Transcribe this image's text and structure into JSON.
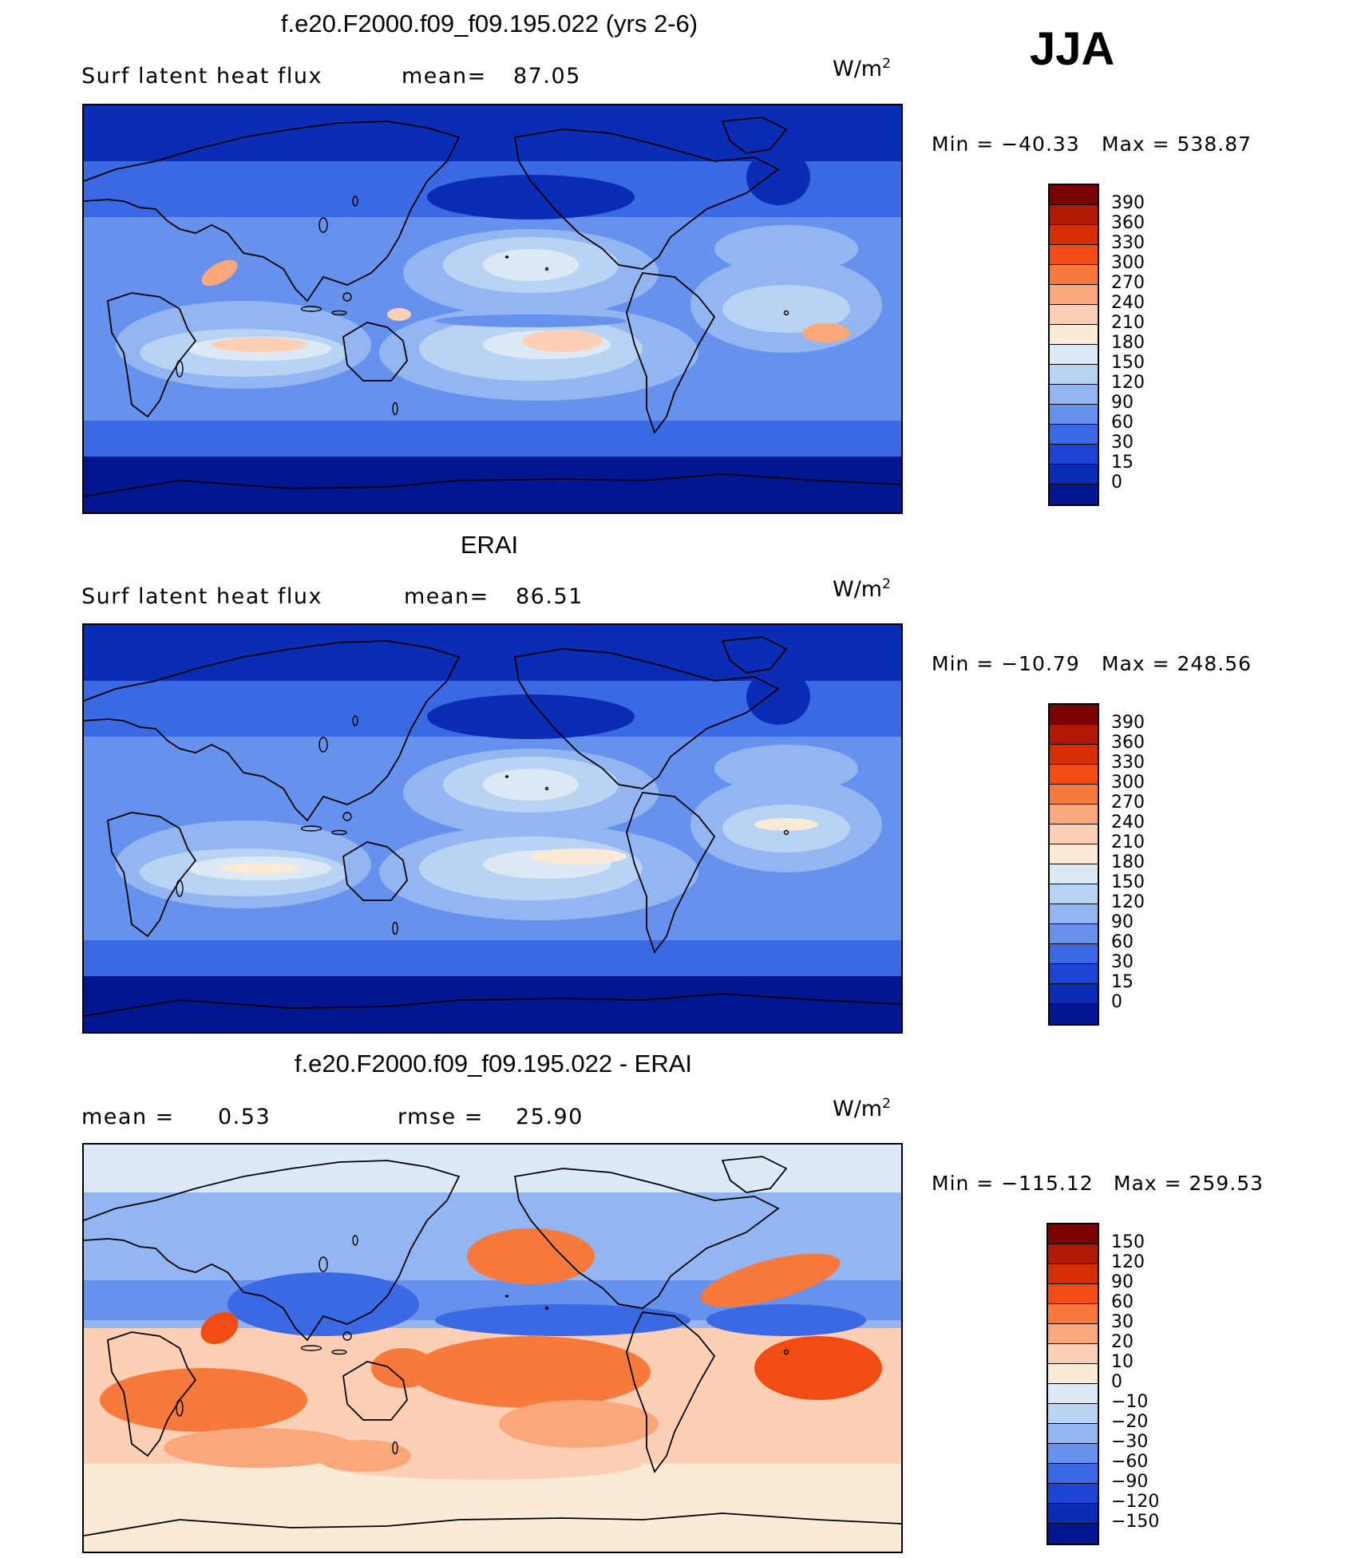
{
  "season": "JJA",
  "units_base": "W/m",
  "units_exp": "2",
  "panels": [
    {
      "title": "f.e20.F2000.f09_f09.195.022 (yrs 2-6)",
      "left_label": "Surf  latent  heat  flux",
      "stat_label": "mean=",
      "stat_value": "87.05",
      "min_label": "Min  =  −40.33",
      "max_label": "Max  =  538.87",
      "map_type": "field"
    },
    {
      "title": "ERAI",
      "left_label": "Surf  latent  heat  flux",
      "stat_label": "mean=",
      "stat_value": "86.51",
      "min_label": "Min  =  −10.79",
      "max_label": "Max  =  248.56",
      "map_type": "field"
    },
    {
      "title": "f.e20.F2000.f09_f09.195.022 - ERAI",
      "left_label": "mean  =",
      "left_value": "0.53",
      "stat_label": "rmse  =",
      "stat_value": "25.90",
      "min_label": "Min  =  −115.12",
      "max_label": "Max  =  259.53",
      "map_type": "diff"
    }
  ],
  "colorbars": {
    "field": {
      "colors": [
        "#7a0404",
        "#b01a04",
        "#d52e05",
        "#f24b14",
        "#f7793c",
        "#fba77c",
        "#fdd0b6",
        "#fbebd6",
        "#dde9f6",
        "#b9d3f4",
        "#93b6f2",
        "#6691ec",
        "#3b69e3",
        "#1c45d3",
        "#0b2cb5",
        "#021691"
      ],
      "labels": [
        "390",
        "360",
        "330",
        "300",
        "270",
        "240",
        "210",
        "180",
        "150",
        "120",
        "90",
        "60",
        "30",
        "15",
        "0"
      ]
    },
    "diff": {
      "colors": [
        "#7a0404",
        "#b01a04",
        "#d52e05",
        "#f24b14",
        "#f7793c",
        "#fba77c",
        "#fdd0b6",
        "#fbebd6",
        "#dde9f6",
        "#b9d3f4",
        "#93b6f2",
        "#6691ec",
        "#3b69e3",
        "#1c45d3",
        "#0b2cb5",
        "#021691"
      ],
      "labels": [
        "150",
        "120",
        "90",
        "60",
        "30",
        "20",
        "10",
        "0",
        "−10",
        "−20",
        "−30",
        "−60",
        "−90",
        "−120",
        "−150"
      ]
    }
  }
}
